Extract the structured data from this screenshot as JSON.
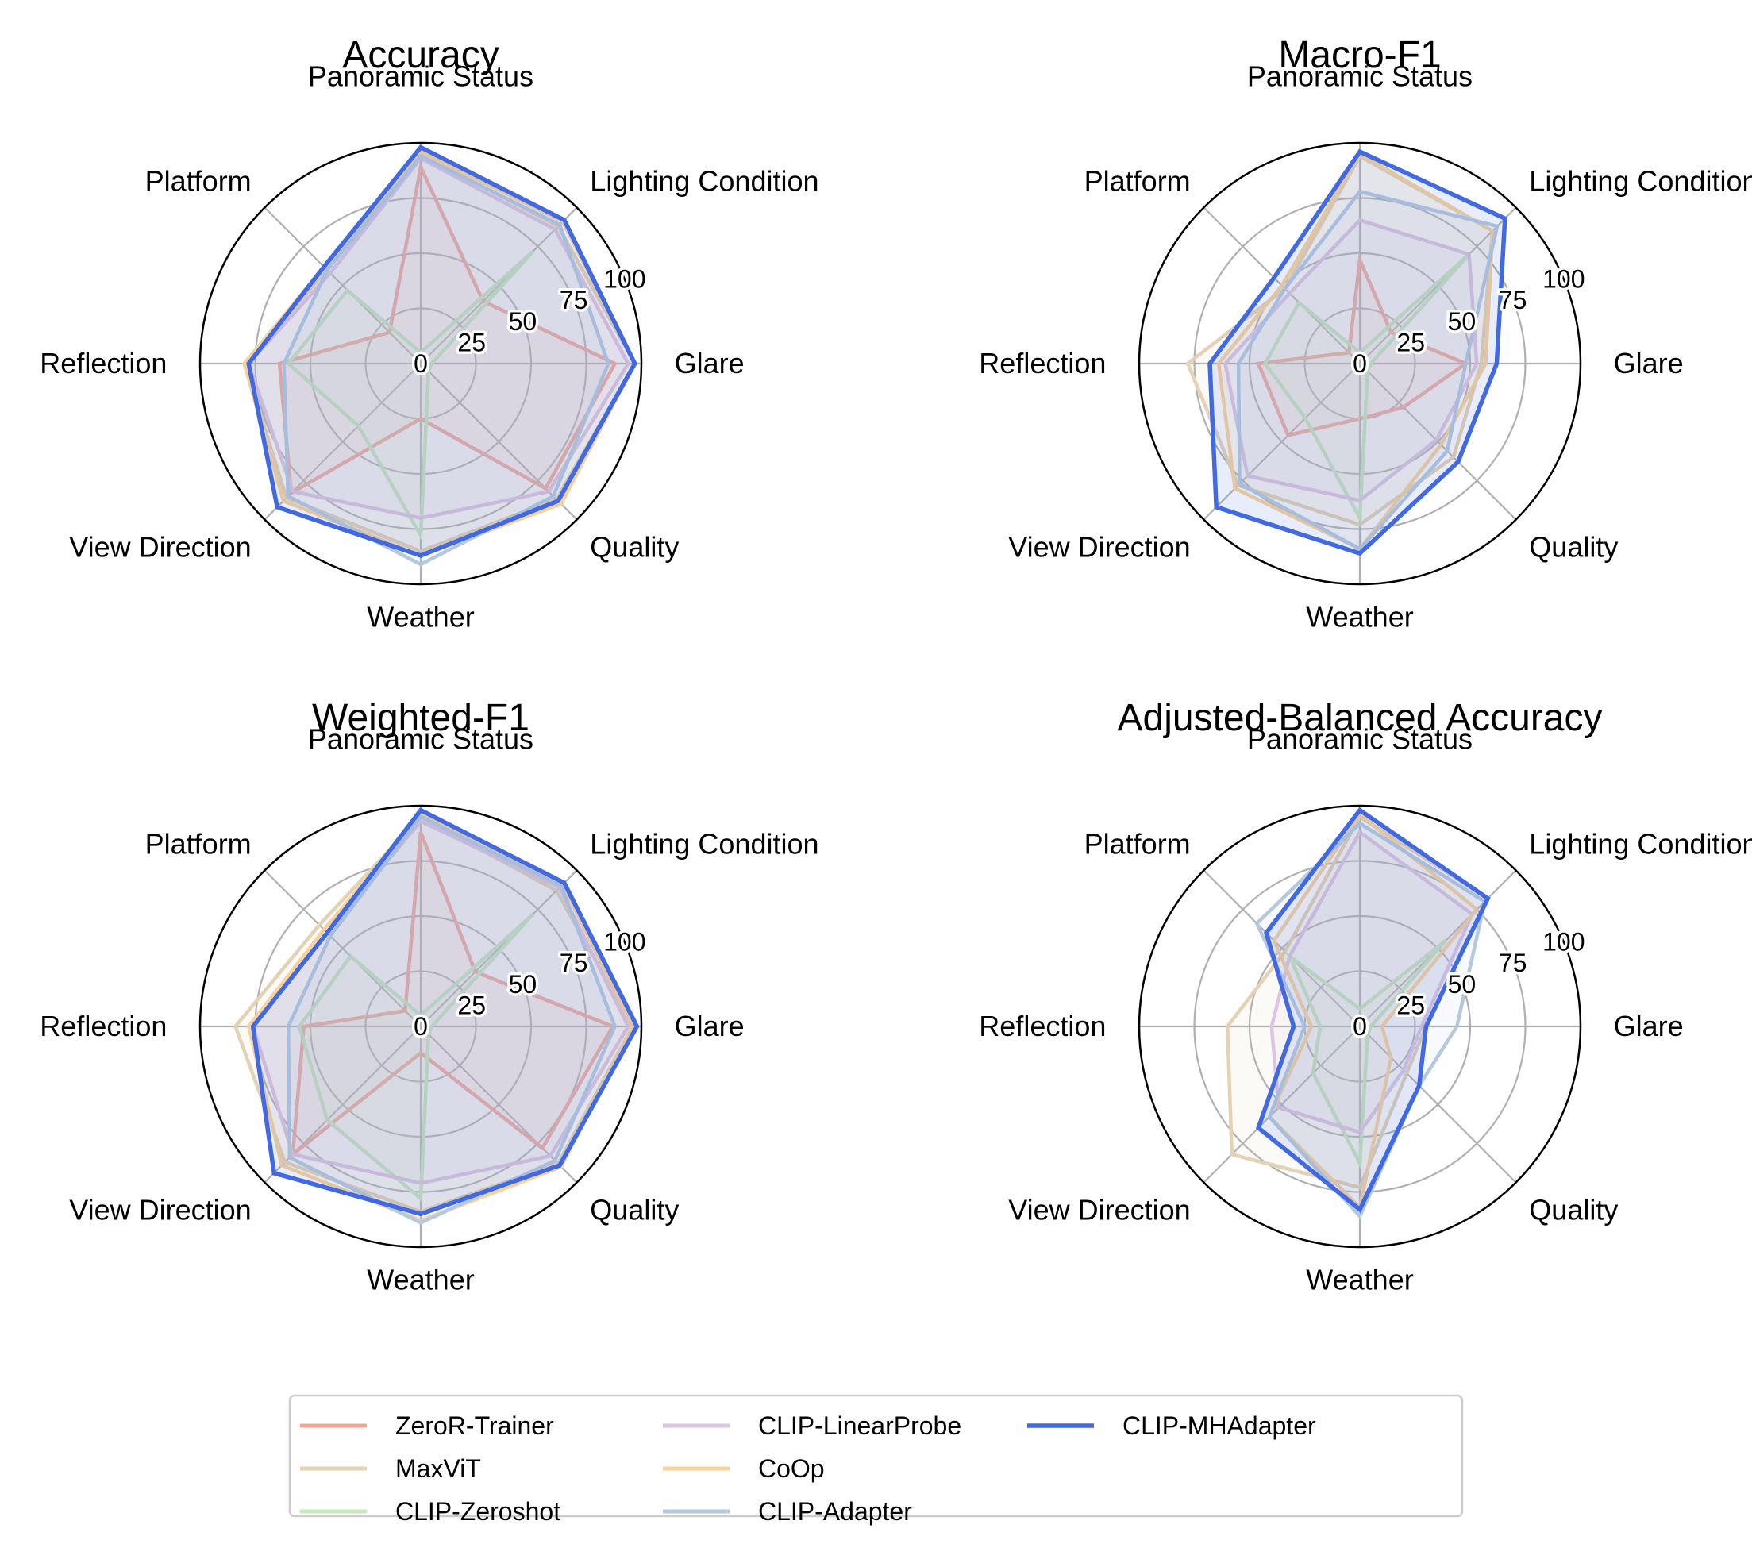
{
  "legend": {
    "items": [
      {
        "name": "ZeroR-Trainer",
        "color": "#f4a595"
      },
      {
        "name": "MaxViT",
        "color": "#e3d2b4"
      },
      {
        "name": "CLIP-Zeroshot",
        "color": "#c5e8bd"
      },
      {
        "name": "CLIP-LinearProbe",
        "color": "#dcc5e3"
      },
      {
        "name": "CoOp",
        "color": "#f9d29b"
      },
      {
        "name": "CLIP-Adapter",
        "color": "#b4c9de"
      },
      {
        "name": "CLIP-MHAdapter",
        "color": "#4169e1"
      }
    ],
    "placement": "bottom-center"
  },
  "chart_data": [
    {
      "type": "radar",
      "title": "Accuracy",
      "categories": [
        "Glare",
        "Lighting Condition",
        "Panoramic Status",
        "Platform",
        "Reflection",
        "View Direction",
        "Weather",
        "Quality"
      ],
      "radial_ticks": [
        "0",
        "25",
        "50",
        "75",
        "100"
      ],
      "rlim": [
        0,
        100
      ],
      "grid": true,
      "series": [
        {
          "name": "ZeroR-Trainer",
          "values": [
            88,
            40,
            89,
            20,
            64,
            83,
            25,
            80
          ]
        },
        {
          "name": "MaxViT",
          "values": [
            97,
            88,
            95,
            60,
            80,
            86,
            85,
            87
          ]
        },
        {
          "name": "CLIP-Zeroshot",
          "values": [
            5,
            72,
            5,
            47,
            60,
            40,
            78,
            5
          ]
        },
        {
          "name": "CLIP-LinearProbe",
          "values": [
            94,
            86,
            93,
            58,
            78,
            82,
            70,
            82
          ]
        },
        {
          "name": "CoOp",
          "values": [
            97,
            91,
            96,
            62,
            80,
            88,
            87,
            90
          ]
        },
        {
          "name": "CLIP-Adapter",
          "values": [
            85,
            89,
            94,
            60,
            62,
            85,
            91,
            85
          ]
        },
        {
          "name": "CLIP-MHAdapter",
          "values": [
            97,
            92,
            98,
            62,
            78,
            92,
            87,
            88
          ]
        }
      ]
    },
    {
      "type": "radar",
      "title": "Macro-F1",
      "categories": [
        "Glare",
        "Lighting Condition",
        "Panoramic Status",
        "Platform",
        "Reflection",
        "View Direction",
        "Weather",
        "Quality"
      ],
      "radial_ticks": [
        "0",
        "25",
        "50",
        "75",
        "100"
      ],
      "rlim": [
        0,
        100
      ],
      "grid": true,
      "series": [
        {
          "name": "ZeroR-Trainer",
          "values": [
            48,
            20,
            47,
            7,
            46,
            46,
            25,
            28
          ]
        },
        {
          "name": "MaxViT",
          "values": [
            55,
            85,
            94,
            48,
            78,
            78,
            73,
            60
          ]
        },
        {
          "name": "CLIP-Zeroshot",
          "values": [
            5,
            70,
            5,
            39,
            43,
            35,
            70,
            5
          ]
        },
        {
          "name": "CLIP-LinearProbe",
          "values": [
            53,
            70,
            65,
            45,
            61,
            72,
            62,
            49
          ]
        },
        {
          "name": "CoOp",
          "values": [
            57,
            85,
            95,
            50,
            64,
            80,
            84,
            52
          ]
        },
        {
          "name": "CLIP-Adapter",
          "values": [
            48,
            88,
            78,
            48,
            55,
            77,
            84,
            56
          ]
        },
        {
          "name": "CLIP-MHAdapter",
          "values": [
            62,
            93,
            96,
            55,
            68,
            92,
            86,
            63
          ]
        }
      ]
    },
    {
      "type": "radar",
      "title": "Weighted-F1",
      "categories": [
        "Glare",
        "Lighting Condition",
        "Panoramic Status",
        "Platform",
        "Reflection",
        "View Direction",
        "Weather",
        "Quality"
      ],
      "radial_ticks": [
        "0",
        "25",
        "50",
        "75",
        "100"
      ],
      "rlim": [
        0,
        100
      ],
      "grid": true,
      "series": [
        {
          "name": "ZeroR-Trainer",
          "values": [
            87,
            35,
            88,
            10,
            53,
            82,
            12,
            78
          ]
        },
        {
          "name": "MaxViT",
          "values": [
            96,
            87,
            95,
            65,
            84,
            87,
            84,
            88
          ]
        },
        {
          "name": "CLIP-Zeroshot",
          "values": [
            5,
            72,
            5,
            45,
            55,
            60,
            78,
            5
          ]
        },
        {
          "name": "CLIP-LinearProbe",
          "values": [
            94,
            89,
            93,
            60,
            76,
            82,
            71,
            83
          ]
        },
        {
          "name": "CoOp",
          "values": [
            96,
            91,
            96,
            62,
            78,
            89,
            88,
            90
          ]
        },
        {
          "name": "CLIP-Adapter",
          "values": [
            88,
            90,
            95,
            58,
            60,
            84,
            89,
            86
          ]
        },
        {
          "name": "CLIP-MHAdapter",
          "values": [
            98,
            92,
            98,
            60,
            76,
            94,
            85,
            89
          ]
        }
      ]
    },
    {
      "type": "radar",
      "title": "Adjusted-Balanced Accuracy",
      "categories": [
        "Glare",
        "Lighting Condition",
        "Panoramic Status",
        "Platform",
        "Reflection",
        "View Direction",
        "Weather",
        "Quality"
      ],
      "radial_ticks": [
        "0",
        "25",
        "50",
        "75",
        "100"
      ],
      "rlim": [
        0,
        100
      ],
      "grid": true,
      "series": [
        {
          "name": "ZeroR-Trainer",
          "values": [
            2,
            2,
            2,
            2,
            2,
            2,
            2,
            2
          ]
        },
        {
          "name": "MaxViT",
          "values": [
            30,
            82,
            95,
            48,
            60,
            82,
            73,
            30
          ]
        },
        {
          "name": "CLIP-Zeroshot",
          "values": [
            5,
            55,
            8,
            45,
            18,
            30,
            62,
            5
          ]
        },
        {
          "name": "CLIP-LinearProbe",
          "values": [
            28,
            72,
            88,
            45,
            40,
            52,
            48,
            28
          ]
        },
        {
          "name": "CoOp",
          "values": [
            10,
            75,
            96,
            55,
            22,
            58,
            82,
            20
          ]
        },
        {
          "name": "CLIP-Adapter",
          "values": [
            44,
            80,
            92,
            66,
            25,
            58,
            86,
            38
          ]
        },
        {
          "name": "CLIP-MHAdapter",
          "values": [
            30,
            82,
            98,
            60,
            30,
            65,
            83,
            38
          ]
        }
      ]
    }
  ]
}
